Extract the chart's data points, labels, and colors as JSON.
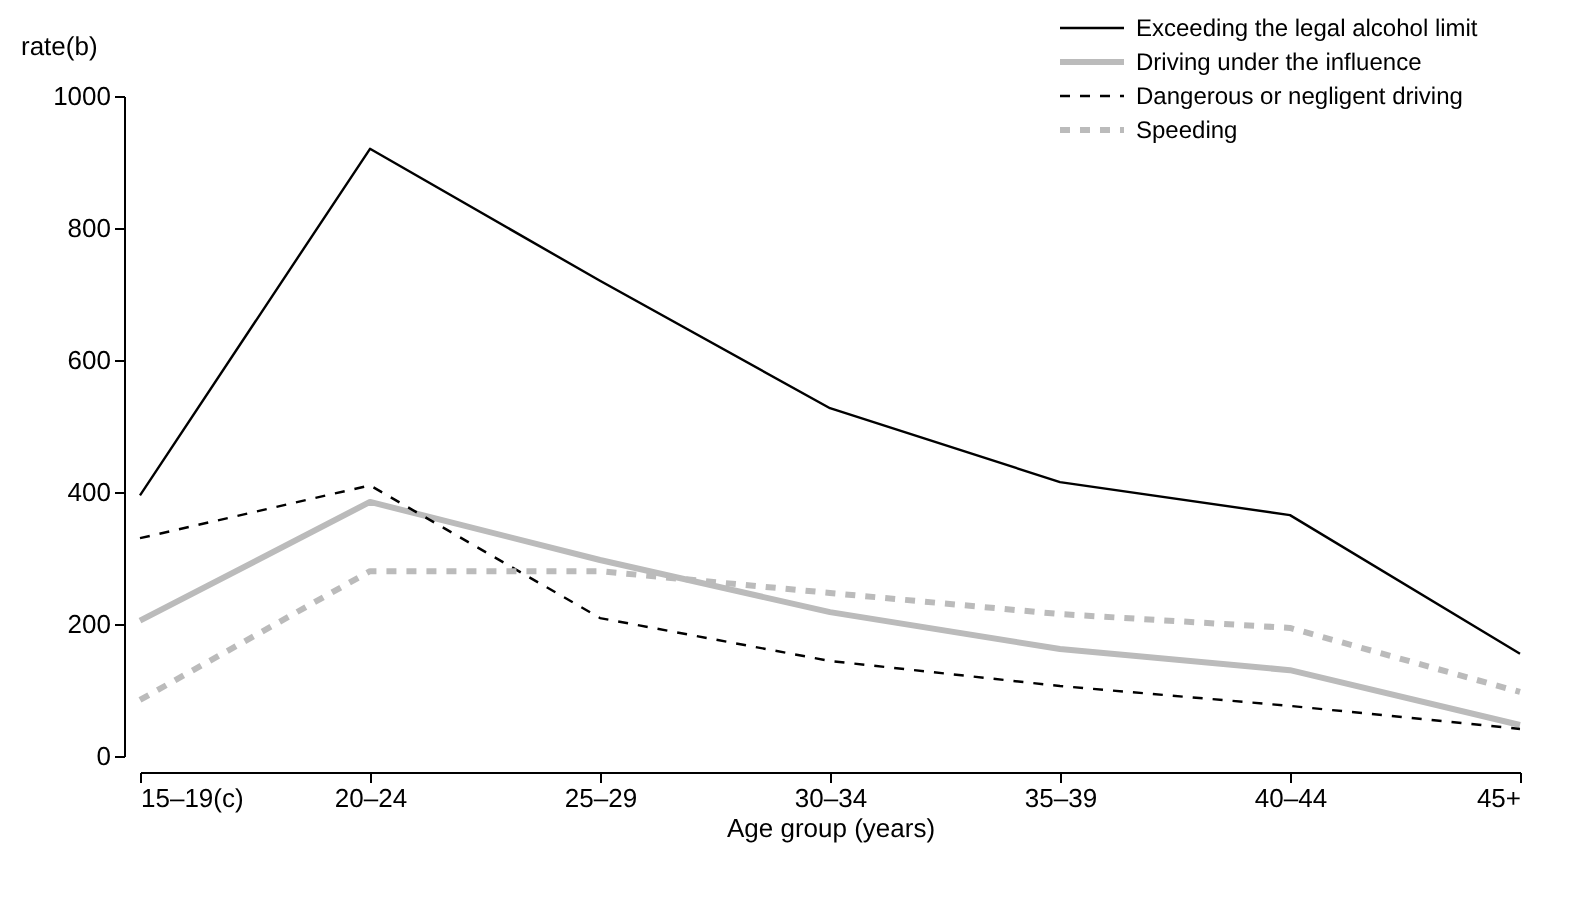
{
  "chart_data": {
    "type": "line",
    "xlabel": "Age group (years)",
    "ylabel": "rate(b)",
    "categories": [
      "15–19(c)",
      "20–24",
      "25–29",
      "30–34",
      "35–39",
      "40–44",
      "45+"
    ],
    "ylim": [
      0,
      1000
    ],
    "yticks": [
      0,
      200,
      400,
      600,
      800,
      1000
    ],
    "grid": false,
    "legend": "top right",
    "marker": "none",
    "series": [
      {
        "name": "Exceeding the legal alcohol limit",
        "color": "#000000",
        "line_style": "solid",
        "values": [
          395,
          920,
          720,
          527,
          415,
          365,
          155
        ]
      },
      {
        "name": "Driving under the influence",
        "color": "#bbbbbb",
        "line_style": "solid",
        "values": [
          205,
          385,
          297,
          218,
          162,
          130,
          47
        ]
      },
      {
        "name": "Dangerous or negligent driving",
        "color": "#000000",
        "line_style": "dashed",
        "values": [
          330,
          410,
          209,
          144,
          106,
          76,
          41
        ]
      },
      {
        "name": "Speeding",
        "color": "#bbbbbb",
        "line_style": "dashed",
        "values": [
          85,
          280,
          280,
          247,
          215,
          194,
          97
        ]
      }
    ]
  }
}
